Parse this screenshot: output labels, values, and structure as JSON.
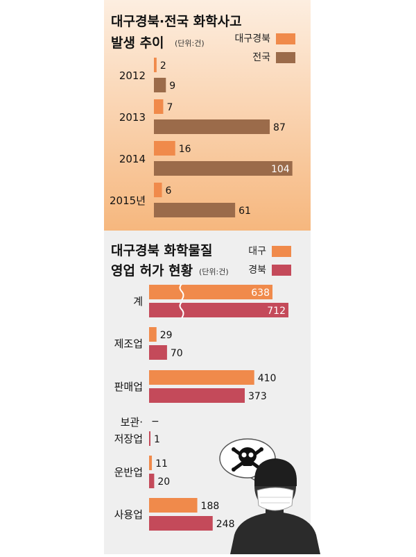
{
  "chart_data": [
    {
      "type": "bar",
      "title_lines": [
        "대구경북·전국 화학사고",
        "발생 추이"
      ],
      "unit": "(단위:건)",
      "categories": [
        "2012",
        "2013",
        "2014",
        "2015년"
      ],
      "series": [
        {
          "name": "대구경북",
          "color": "#f08a4b",
          "values": [
            2,
            7,
            16,
            6
          ]
        },
        {
          "name": "전국",
          "color": "#9b6b4a",
          "values": [
            9,
            87,
            104,
            61
          ]
        }
      ]
    },
    {
      "type": "bar",
      "title_lines": [
        "대구경북 화학물질",
        "영업 허가 현황"
      ],
      "unit": "(단위:건)",
      "categories": [
        "계",
        "제조업",
        "판매업",
        "보관·저장업",
        "운반업",
        "사용업"
      ],
      "series": [
        {
          "name": "대구",
          "color": "#f08a4b",
          "values": [
            638,
            29,
            410,
            null,
            11,
            188
          ],
          "labels": [
            "638",
            "29",
            "410",
            "−",
            "11",
            "188"
          ]
        },
        {
          "name": "경북",
          "color": "#c44a5a",
          "values": [
            712,
            70,
            373,
            1,
            20,
            248
          ],
          "labels": [
            "712",
            "70",
            "373",
            "1",
            "20",
            "248"
          ]
        }
      ],
      "axis_break_category": "계"
    }
  ],
  "colors": {
    "panel1_top": "#fdeee0",
    "panel1_bottom": "#f6b77e",
    "panel2_background": "#efefef"
  },
  "icons": [
    "skull-crossbones-icon",
    "masked-person-icon"
  ]
}
